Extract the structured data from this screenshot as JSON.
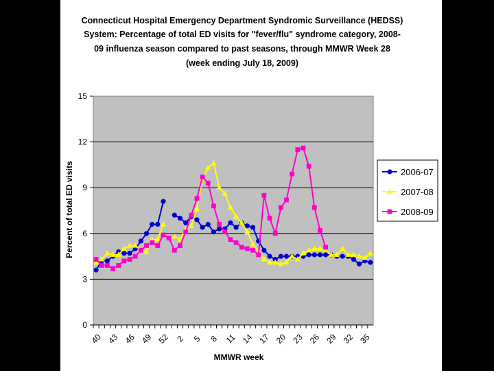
{
  "chart_data": {
    "type": "line",
    "title_lines": [
      "Connecticut Hospital Emergency Department Syndromic Surveillance (HEDSS)",
      "System: Percentage of total ED visits for \"fever/flu\" syndrome category, 2008-",
      "09 influenza season compared to past seasons, through MMWR Week 28",
      "(week ending July 18, 2009)"
    ],
    "xlabel": "MMWR week",
    "ylabel": "Percent of total ED visits",
    "ylim": [
      0,
      15
    ],
    "yticks": [
      0,
      3,
      6,
      9,
      12,
      15
    ],
    "x_tick_labels": [
      "40",
      "43",
      "46",
      "49",
      "52",
      "2",
      "5",
      "8",
      "11",
      "14",
      "17",
      "20",
      "23",
      "26",
      "29",
      "32",
      "35"
    ],
    "weeks": [
      "40",
      "41",
      "42",
      "43",
      "44",
      "45",
      "46",
      "47",
      "48",
      "49",
      "50",
      "51",
      "52",
      "53",
      "1",
      "2",
      "3",
      "4",
      "5",
      "6",
      "7",
      "8",
      "9",
      "10",
      "11",
      "12",
      "13",
      "14",
      "15",
      "16",
      "17",
      "18",
      "19",
      "20",
      "21",
      "22",
      "23",
      "24",
      "25",
      "26",
      "27",
      "28",
      "29",
      "30",
      "31",
      "32",
      "33",
      "34",
      "35",
      "36"
    ],
    "legend_position": "right",
    "series": [
      {
        "name": "2006-07",
        "color": "#0000cc",
        "marker": "circle",
        "values": [
          3.6,
          4.2,
          4.2,
          4.5,
          4.8,
          4.7,
          4.7,
          5.0,
          5.5,
          6.0,
          6.6,
          6.6,
          8.1,
          null,
          7.2,
          7.0,
          6.7,
          7.1,
          6.9,
          6.4,
          6.6,
          6.1,
          6.3,
          6.3,
          6.7,
          6.4,
          6.7,
          6.5,
          6.4,
          5.5,
          4.9,
          4.5,
          4.3,
          4.5,
          4.5,
          4.5,
          4.5,
          4.5,
          4.6,
          4.6,
          4.6,
          4.6,
          4.6,
          4.5,
          4.5,
          4.5,
          4.3,
          4.0,
          4.2,
          4.1
        ]
      },
      {
        "name": "2007-08",
        "color": "#ffff00",
        "marker": "triangle",
        "values": [
          4.1,
          4.3,
          4.7,
          4.6,
          4.6,
          5.0,
          5.2,
          5.2,
          4.9,
          4.8,
          5.6,
          5.6,
          6.6,
          null,
          5.8,
          5.6,
          6.3,
          6.5,
          7.6,
          9.6,
          10.3,
          10.6,
          9.0,
          8.6,
          7.7,
          7.1,
          6.7,
          6.1,
          5.3,
          4.8,
          4.3,
          4.1,
          4.1,
          4.0,
          4.1,
          4.5,
          4.3,
          4.7,
          4.9,
          5.0,
          5.0,
          4.9,
          4.6,
          4.6,
          5.0,
          4.6,
          4.6,
          4.5,
          4.4,
          4.7
        ]
      },
      {
        "name": "2008-09",
        "color": "#ff00cc",
        "marker": "square",
        "values": [
          4.3,
          3.9,
          3.9,
          3.7,
          3.9,
          4.2,
          4.3,
          4.5,
          4.9,
          5.2,
          5.4,
          5.2,
          5.9,
          5.7,
          4.9,
          5.2,
          6.1,
          7.2,
          8.3,
          9.7,
          9.3,
          7.8,
          6.6,
          6.1,
          5.6,
          5.4,
          5.1,
          5.0,
          4.9,
          4.6,
          8.5,
          7.0,
          6.0,
          7.7,
          8.2,
          9.9,
          11.5,
          11.6,
          10.4,
          7.7,
          6.2,
          5.1,
          null,
          null,
          null,
          null,
          null,
          null,
          null,
          null
        ]
      }
    ]
  }
}
